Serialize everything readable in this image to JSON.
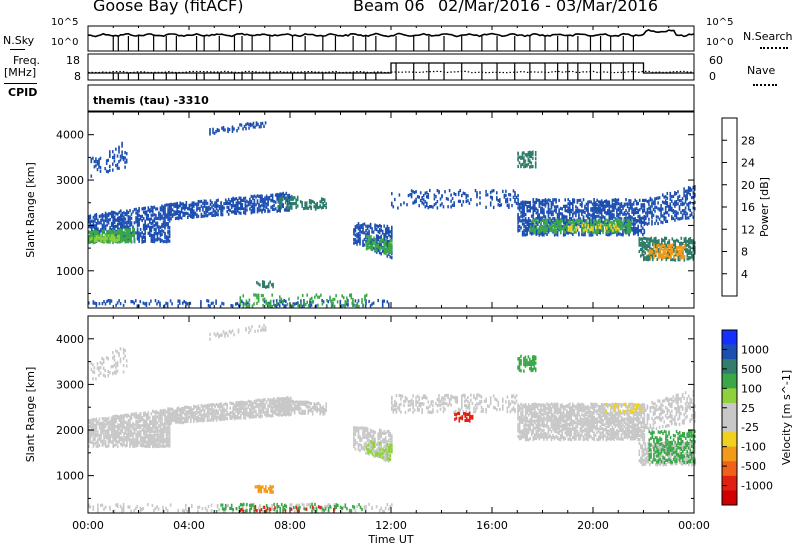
{
  "header": {
    "station": "Goose Bay (fitACF)",
    "beam": "Beam 06",
    "dates": "02/Mar/2016 - 03/Mar/2016"
  },
  "top_panels": {
    "nsky_label": "N.Sky",
    "nsky_ticks": [
      "10^5",
      "10^0"
    ],
    "nsearch_label": "N.Search",
    "nsearch_ticks": [
      "10^5",
      "10^0"
    ],
    "freq_label_1": "Freq.",
    "freq_label_2": "[MHz]",
    "freq_ticks": [
      "18",
      "8"
    ],
    "nave_label": "Nave",
    "nave_ticks": [
      "60",
      "0"
    ],
    "cpid_label": "CPID",
    "cpid_text": "themis (tau) -3310"
  },
  "chart_data": [
    {
      "type": "heatmap",
      "title": "",
      "xlabel": "Time UT",
      "ylabel": "Slant Range [km]",
      "x_ticks": [
        "00:00",
        "04:00",
        "08:00",
        "12:00",
        "16:00",
        "20:00",
        "00:00"
      ],
      "y_ticks": [
        1000,
        2000,
        3000,
        4000
      ],
      "ylim": [
        180,
        4500
      ],
      "colorbar_label": "Power [dB]",
      "colorbar_ticks": [
        "4",
        "8",
        "12",
        "16",
        "20",
        "24",
        "28"
      ],
      "colorbar_colors": [
        "#1430ff",
        "#1c4fb0",
        "#2f7d6a",
        "#3aa848",
        "#8fd13a",
        "#f0d020",
        "#f29a1a",
        "#f06018",
        "#e02010",
        "#c00000"
      ],
      "bands": [
        {
          "t": [
            0.0,
            3.2
          ],
          "r0": [
            1650,
            1650
          ],
          "r1": [
            2250,
            2500
          ],
          "c": "#1c4fb0",
          "d": 0.55
        },
        {
          "t": [
            0.0,
            1.8
          ],
          "r0": [
            1620,
            1650
          ],
          "r1": [
            1900,
            1950
          ],
          "c": "#3aa848",
          "d": 0.75
        },
        {
          "t": [
            0.0,
            1.2
          ],
          "r0": [
            1650,
            1680
          ],
          "r1": [
            1800,
            1820
          ],
          "c": "#8fd13a",
          "d": 0.5
        },
        {
          "t": [
            3.2,
            8.0
          ],
          "r0": [
            2150,
            2350
          ],
          "r1": [
            2500,
            2750
          ],
          "c": "#1c4fb0",
          "d": 0.6
        },
        {
          "t": [
            7.5,
            9.4
          ],
          "r0": [
            2400,
            2350
          ],
          "r1": [
            2700,
            2600
          ],
          "c": "#2f7d6a",
          "d": 0.45
        },
        {
          "t": [
            10.5,
            12.0
          ],
          "r0": [
            1600,
            1300
          ],
          "r1": [
            2100,
            2000
          ],
          "c": "#1c4fb0",
          "d": 0.5
        },
        {
          "t": [
            11.0,
            12.0
          ],
          "r0": [
            1500,
            1350
          ],
          "r1": [
            1800,
            1700
          ],
          "c": "#3aa848",
          "d": 0.5
        },
        {
          "t": [
            12.0,
            17.0
          ],
          "r0": [
            2400,
            2400
          ],
          "r1": [
            2800,
            2800
          ],
          "c": "#1c4fb0",
          "d": 0.18
        },
        {
          "t": [
            17.0,
            22.0
          ],
          "r0": [
            1800,
            1800
          ],
          "r1": [
            2600,
            2600
          ],
          "c": "#1c4fb0",
          "d": 0.55
        },
        {
          "t": [
            17.5,
            21.5
          ],
          "r0": [
            1850,
            1850
          ],
          "r1": [
            2150,
            2150
          ],
          "c": "#3aa848",
          "d": 0.55
        },
        {
          "t": [
            19.0,
            21.0
          ],
          "r0": [
            1900,
            1900
          ],
          "r1": [
            2050,
            2050
          ],
          "c": "#f0d020",
          "d": 0.35
        },
        {
          "t": [
            21.8,
            24.0
          ],
          "r0": [
            1250,
            1250
          ],
          "r1": [
            1750,
            1750
          ],
          "c": "#2f7d6a",
          "d": 0.55
        },
        {
          "t": [
            22.2,
            23.6
          ],
          "r0": [
            1300,
            1300
          ],
          "r1": [
            1600,
            1600
          ],
          "c": "#f29a1a",
          "d": 0.5
        },
        {
          "t": [
            22.0,
            24.0
          ],
          "r0": [
            2000,
            2200
          ],
          "r1": [
            2600,
            2900
          ],
          "c": "#1c4fb0",
          "d": 0.4
        },
        {
          "t": [
            0.0,
            12.0
          ],
          "r0": [
            180,
            180
          ],
          "r1": [
            380,
            380
          ],
          "c": "#1c4fb0",
          "d": 0.25
        },
        {
          "t": [
            6.0,
            11.0
          ],
          "r0": [
            180,
            180
          ],
          "r1": [
            500,
            500
          ],
          "c": "#3aa848",
          "d": 0.2
        },
        {
          "t": [
            12.0,
            24.0
          ],
          "r0": [
            180,
            180
          ],
          "r1": [
            240,
            240
          ],
          "c": "#1430ff",
          "d": 0.5
        },
        {
          "t": [
            6.6,
            7.3
          ],
          "r0": [
            650,
            650
          ],
          "r1": [
            800,
            800
          ],
          "c": "#2f7d6a",
          "d": 0.6
        },
        {
          "t": [
            4.8,
            7.0
          ],
          "r0": [
            4000,
            4200
          ],
          "r1": [
            4150,
            4350
          ],
          "c": "#1c4fb0",
          "d": 0.35
        },
        {
          "t": [
            17.0,
            17.7
          ],
          "r0": [
            3300,
            3300
          ],
          "r1": [
            3650,
            3650
          ],
          "c": "#2f7d6a",
          "d": 0.5
        },
        {
          "t": [
            0.1,
            1.5
          ],
          "r0": [
            3100,
            3300
          ],
          "r1": [
            3500,
            3900
          ],
          "c": "#1c4fb0",
          "d": 0.2
        }
      ]
    },
    {
      "type": "heatmap",
      "title": "",
      "xlabel": "Time UT",
      "ylabel": "Slant Range [km]",
      "x_ticks": [
        "00:00",
        "04:00",
        "08:00",
        "12:00",
        "16:00",
        "20:00",
        "00:00"
      ],
      "y_ticks": [
        1000,
        2000,
        3000,
        4000
      ],
      "ylim": [
        180,
        4500
      ],
      "colorbar_label": "Velocity [m s^-1]",
      "colorbar_ticks": [
        "1000",
        "500",
        "100",
        "25",
        "-25",
        "-100",
        "-500",
        "-1000"
      ],
      "colorbar_colors": [
        "#1430ff",
        "#1c4fb0",
        "#2f7d6a",
        "#3aa848",
        "#8fd13a",
        "#c8c8c8",
        "#c8c8c8",
        "#f0d020",
        "#f29a1a",
        "#f06018",
        "#e02010",
        "#d00000"
      ],
      "bands": [
        {
          "t": [
            0.0,
            3.2
          ],
          "r0": [
            1650,
            1650
          ],
          "r1": [
            2250,
            2500
          ],
          "c": "#c8c8c8",
          "d": 0.75
        },
        {
          "t": [
            3.2,
            8.0
          ],
          "r0": [
            2150,
            2350
          ],
          "r1": [
            2500,
            2750
          ],
          "c": "#c8c8c8",
          "d": 0.75
        },
        {
          "t": [
            7.5,
            9.4
          ],
          "r0": [
            2400,
            2350
          ],
          "r1": [
            2700,
            2600
          ],
          "c": "#c8c8c8",
          "d": 0.65
        },
        {
          "t": [
            10.5,
            12.0
          ],
          "r0": [
            1600,
            1300
          ],
          "r1": [
            2100,
            2000
          ],
          "c": "#c8c8c8",
          "d": 0.6
        },
        {
          "t": [
            11.0,
            12.0
          ],
          "r0": [
            1500,
            1350
          ],
          "r1": [
            1800,
            1700
          ],
          "c": "#8fd13a",
          "d": 0.3
        },
        {
          "t": [
            12.0,
            17.0
          ],
          "r0": [
            2400,
            2400
          ],
          "r1": [
            2800,
            2800
          ],
          "c": "#c8c8c8",
          "d": 0.3
        },
        {
          "t": [
            14.5,
            15.2
          ],
          "r0": [
            2200,
            2200
          ],
          "r1": [
            2400,
            2400
          ],
          "c": "#e02010",
          "d": 0.5
        },
        {
          "t": [
            17.0,
            22.0
          ],
          "r0": [
            1800,
            1800
          ],
          "r1": [
            2600,
            2600
          ],
          "c": "#c8c8c8",
          "d": 0.7
        },
        {
          "t": [
            20.5,
            22.0
          ],
          "r0": [
            2400,
            2400
          ],
          "r1": [
            2600,
            2600
          ],
          "c": "#f0d020",
          "d": 0.3
        },
        {
          "t": [
            21.8,
            24.0
          ],
          "r0": [
            1250,
            1250
          ],
          "r1": [
            1750,
            1750
          ],
          "c": "#c8c8c8",
          "d": 0.6
        },
        {
          "t": [
            22.2,
            24.0
          ],
          "r0": [
            1300,
            1300
          ],
          "r1": [
            2000,
            2000
          ],
          "c": "#3aa848",
          "d": 0.4
        },
        {
          "t": [
            22.0,
            24.0
          ],
          "r0": [
            2000,
            2200
          ],
          "r1": [
            2600,
            2900
          ],
          "c": "#c8c8c8",
          "d": 0.4
        },
        {
          "t": [
            0.0,
            12.0
          ],
          "r0": [
            180,
            180
          ],
          "r1": [
            400,
            400
          ],
          "c": "#c8c8c8",
          "d": 0.2
        },
        {
          "t": [
            5.0,
            11.0
          ],
          "r0": [
            180,
            180
          ],
          "r1": [
            400,
            400
          ],
          "c": "#3aa848",
          "d": 0.18
        },
        {
          "t": [
            6.0,
            10.0
          ],
          "r0": [
            180,
            180
          ],
          "r1": [
            350,
            350
          ],
          "c": "#e02010",
          "d": 0.1
        },
        {
          "t": [
            12.0,
            24.0
          ],
          "r0": [
            180,
            180
          ],
          "r1": [
            240,
            240
          ],
          "c": "#e02010",
          "d": 0.18
        },
        {
          "t": [
            6.6,
            7.3
          ],
          "r0": [
            650,
            650
          ],
          "r1": [
            800,
            800
          ],
          "c": "#f29a1a",
          "d": 0.75
        },
        {
          "t": [
            4.8,
            7.0
          ],
          "r0": [
            4000,
            4200
          ],
          "r1": [
            4150,
            4350
          ],
          "c": "#c8c8c8",
          "d": 0.35
        },
        {
          "t": [
            17.0,
            17.7
          ],
          "r0": [
            3300,
            3300
          ],
          "r1": [
            3650,
            3650
          ],
          "c": "#3aa848",
          "d": 0.5
        },
        {
          "t": [
            0.1,
            1.5
          ],
          "r0": [
            3100,
            3300
          ],
          "r1": [
            3500,
            3900
          ],
          "c": "#c8c8c8",
          "d": 0.25
        }
      ]
    }
  ]
}
